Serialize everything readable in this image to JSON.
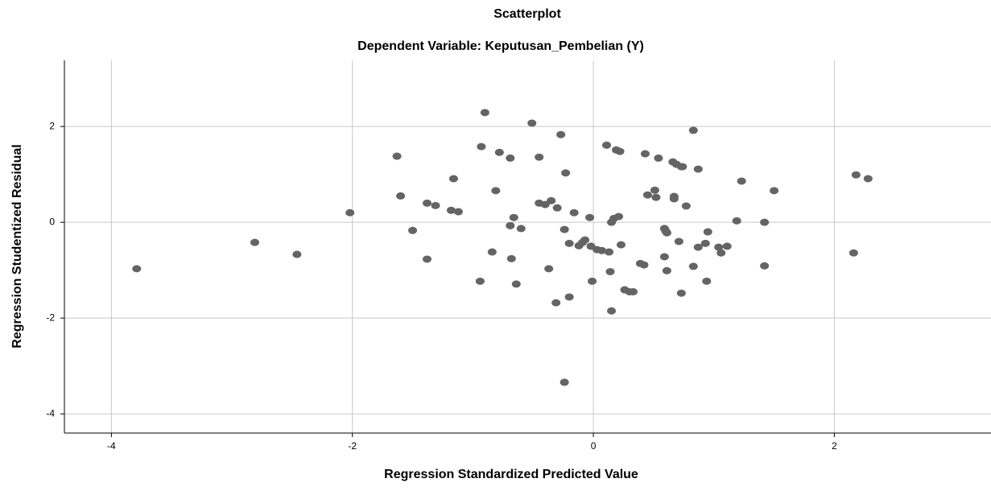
{
  "chart_data": {
    "type": "scatter",
    "title": "Scatterplot",
    "subtitle": "Dependent Variable: Keputusan_Pembelian (Y)",
    "x_label": "Regression Standardized Predicted Value",
    "y_label": "Regression Studentized Residual",
    "color": "#646464",
    "grid": true,
    "xlim": [
      -4.39,
      3.3
    ],
    "ylim": [
      -4.4,
      3.38
    ],
    "xticks": [
      -4,
      -2,
      0,
      2
    ],
    "yticks": [
      -4,
      -2,
      0,
      2
    ],
    "x": [
      -3.79,
      -2.81,
      -2.46,
      -2.02,
      -1.63,
      -1.6,
      -1.5,
      -1.38,
      -1.38,
      -1.31,
      -1.18,
      -1.16,
      -1.12,
      -0.94,
      -0.93,
      -0.9,
      -0.84,
      -0.81,
      -0.78,
      -0.69,
      -0.69,
      -0.68,
      -0.66,
      -0.64,
      -0.6,
      -0.51,
      -0.45,
      -0.45,
      -0.4,
      -0.37,
      -0.35,
      -0.31,
      -0.3,
      -0.27,
      -0.24,
      -0.24,
      -0.23,
      -0.2,
      -0.2,
      -0.16,
      -0.12,
      -0.09,
      -0.07,
      -0.03,
      -0.02,
      -0.01,
      0.03,
      0.07,
      0.11,
      0.13,
      0.14,
      0.15,
      0.15,
      0.17,
      0.19,
      0.21,
      0.22,
      0.23,
      0.26,
      0.3,
      0.33,
      0.39,
      0.42,
      0.43,
      0.45,
      0.51,
      0.52,
      0.54,
      0.59,
      0.59,
      0.6,
      0.61,
      0.61,
      0.66,
      0.67,
      0.67,
      0.69,
      0.71,
      0.73,
      0.73,
      0.74,
      0.77,
      0.83,
      0.83,
      0.87,
      0.87,
      0.93,
      0.94,
      0.95,
      1.04,
      1.06,
      1.11,
      1.19,
      1.23,
      1.42,
      1.42,
      1.5,
      2.16,
      2.18,
      2.28
    ],
    "values": [
      -0.97,
      -0.42,
      -0.67,
      0.2,
      1.38,
      0.55,
      -0.17,
      0.4,
      -0.77,
      0.35,
      0.25,
      0.91,
      0.22,
      -1.23,
      1.58,
      2.29,
      -0.62,
      0.66,
      1.46,
      -0.07,
      1.34,
      -0.76,
      0.1,
      -1.29,
      -0.13,
      2.07,
      1.36,
      0.4,
      0.37,
      -0.97,
      0.45,
      -1.68,
      0.3,
      1.83,
      -0.15,
      -3.34,
      1.03,
      -1.56,
      -0.44,
      0.2,
      -0.49,
      -0.42,
      -0.37,
      0.1,
      -0.5,
      -1.23,
      -0.57,
      -0.59,
      1.61,
      -0.62,
      -1.03,
      -1.85,
      0,
      0.08,
      1.51,
      0.12,
      1.48,
      -0.47,
      -1.41,
      -1.45,
      -1.45,
      -0.86,
      -0.89,
      1.43,
      0.57,
      0.67,
      0.52,
      1.34,
      -0.72,
      -0.13,
      -0.18,
      -1.01,
      -0.22,
      1.26,
      0.49,
      0.54,
      1.21,
      -0.4,
      1.16,
      -1.48,
      1.16,
      0.34,
      -0.92,
      1.92,
      -0.52,
      1.11,
      -0.44,
      -1.23,
      -0.2,
      -0.52,
      -0.64,
      -0.5,
      0.03,
      0.86,
      0,
      -0.91,
      0.66,
      -0.64,
      0.99,
      0.91
    ]
  }
}
